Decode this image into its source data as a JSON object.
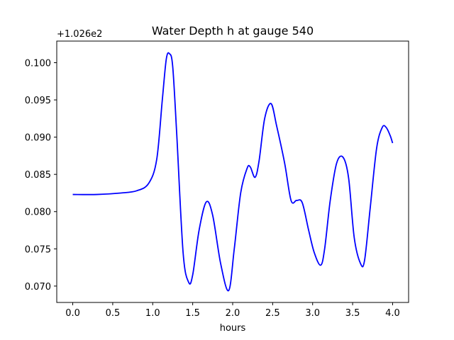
{
  "chart_data": {
    "type": "line",
    "title": "Water Depth h at gauge 540",
    "xlabel": "hours",
    "ylabel": "",
    "y_offset_text": "+1.026e2",
    "xlim": [
      -0.2,
      4.2
    ],
    "ylim": [
      0.0678,
      0.1029
    ],
    "x_ticks": [
      0.0,
      0.5,
      1.0,
      1.5,
      2.0,
      2.5,
      3.0,
      3.5,
      4.0
    ],
    "x_tick_labels": [
      "0.0",
      "0.5",
      "1.0",
      "1.5",
      "2.0",
      "2.5",
      "3.0",
      "3.5",
      "4.0"
    ],
    "y_ticks": [
      0.07,
      0.075,
      0.08,
      0.085,
      0.09,
      0.095,
      0.1
    ],
    "y_tick_labels": [
      "0.070",
      "0.075",
      "0.080",
      "0.085",
      "0.090",
      "0.095",
      "0.100"
    ],
    "grid": false,
    "series": [
      {
        "color": "#0000ff",
        "x": [
          0.0,
          0.3,
          0.6,
          0.8,
          0.95,
          1.05,
          1.12,
          1.17,
          1.21,
          1.25,
          1.3,
          1.38,
          1.45,
          1.5,
          1.58,
          1.67,
          1.75,
          1.85,
          1.95,
          2.02,
          2.1,
          2.18,
          2.22,
          2.28,
          2.33,
          2.4,
          2.48,
          2.55,
          2.65,
          2.73,
          2.8,
          2.87,
          2.95,
          3.02,
          3.1,
          3.15,
          3.22,
          3.3,
          3.38,
          3.45,
          3.52,
          3.6,
          3.65,
          3.72,
          3.8,
          3.87,
          3.92,
          3.97,
          4.0
        ],
        "y": [
          0.0823,
          0.0823,
          0.0825,
          0.0828,
          0.0838,
          0.087,
          0.095,
          0.1005,
          0.1012,
          0.0995,
          0.0905,
          0.0745,
          0.0705,
          0.0715,
          0.0775,
          0.0813,
          0.0795,
          0.073,
          0.0694,
          0.075,
          0.0825,
          0.0858,
          0.086,
          0.0846,
          0.0868,
          0.0925,
          0.0945,
          0.0915,
          0.0865,
          0.0815,
          0.0815,
          0.0812,
          0.0775,
          0.0745,
          0.0728,
          0.075,
          0.0815,
          0.0865,
          0.0873,
          0.0845,
          0.0765,
          0.073,
          0.0735,
          0.0805,
          0.0885,
          0.0913,
          0.0913,
          0.0902,
          0.0892
        ]
      }
    ]
  }
}
